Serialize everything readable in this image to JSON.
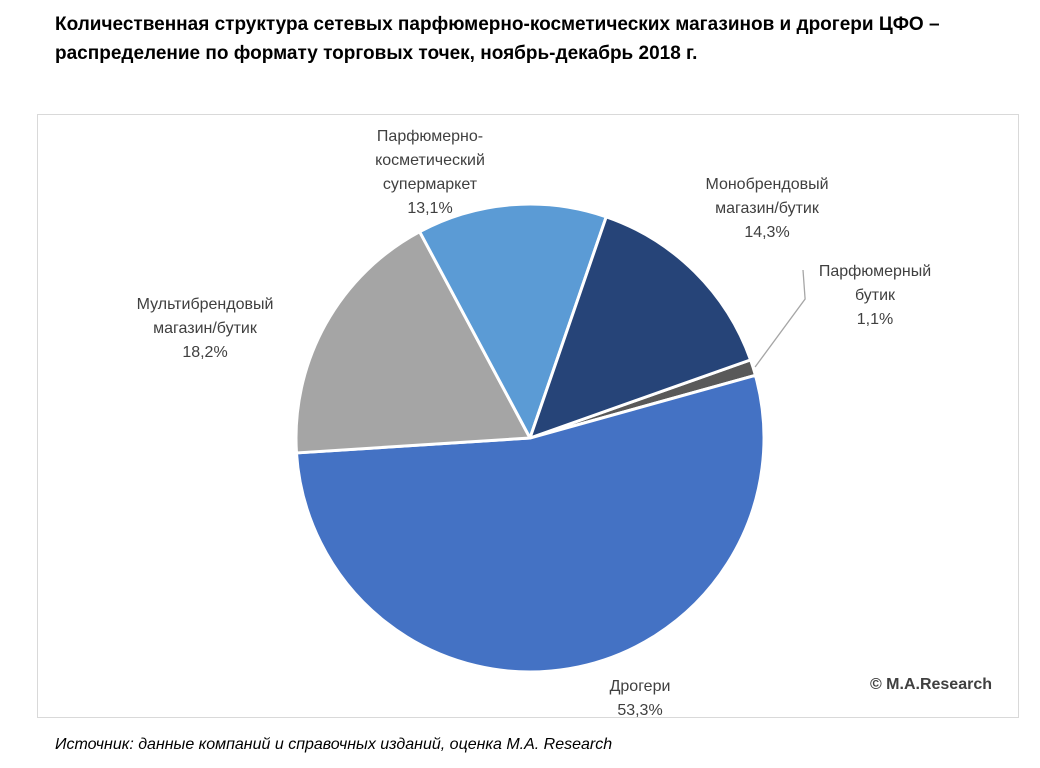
{
  "title": "Количественная структура сетевых парфюмерно-косметических магазинов и дрогери ЦФО – распределение по формату торговых точек, ноябрь-декабрь 2018 г.",
  "copyright": "© M.A.Research",
  "source": "Источник: данные компаний и справочных изданий, оценка M.A. Research",
  "chart_data": {
    "type": "pie",
    "title": "Количественная структура сетевых парфюмерно-косметических магазинов и дрогери ЦФО – распределение по формату торговых точек, ноябрь-декабрь 2018 г.",
    "slices": [
      {
        "label": "Парфюмерный бутик",
        "lines": [
          "Парфюмерный",
          "бутик"
        ],
        "value": 1.1,
        "value_label": "1,1%",
        "color": "#595959"
      },
      {
        "label": "Дрогери",
        "lines": [
          "Дрогери"
        ],
        "value": 53.3,
        "value_label": "53,3%",
        "color": "#4472c4"
      },
      {
        "label": "Мультибрендовый магазин/бутик",
        "lines": [
          "Мультибрендовый",
          "магазин/бутик"
        ],
        "value": 18.2,
        "value_label": "18,2%",
        "color": "#a5a5a5"
      },
      {
        "label": "Парфюмерно-косметический супермаркет",
        "lines": [
          "Парфюмерно-",
          "косметический",
          "супермаркет"
        ],
        "value": 13.1,
        "value_label": "13,1%",
        "color": "#5b9bd5"
      },
      {
        "label": "Монобрендовый магазин/бутик",
        "lines": [
          "Монобрендовый",
          "магазин/бутик"
        ],
        "value": 14.3,
        "value_label": "14,3%",
        "color": "#264478"
      }
    ],
    "legend": "none"
  }
}
